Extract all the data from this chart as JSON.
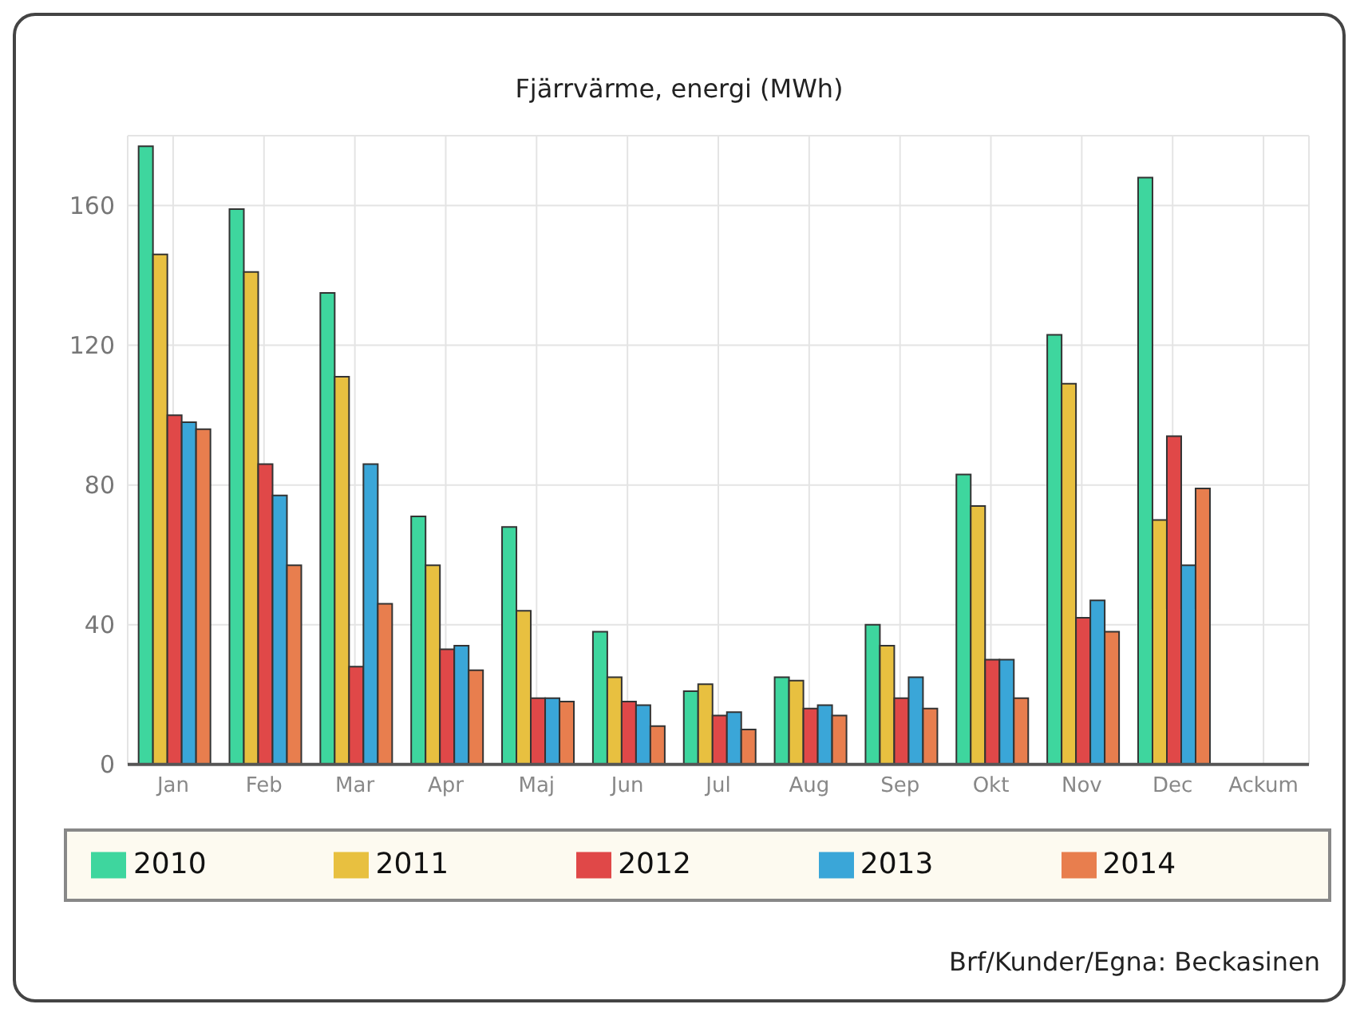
{
  "chart_data": {
    "type": "bar",
    "title": "Fjärrvärme, energi (MWh)",
    "categories": [
      "Jan",
      "Feb",
      "Mar",
      "Apr",
      "Maj",
      "Jun",
      "Jul",
      "Aug",
      "Sep",
      "Okt",
      "Nov",
      "Dec",
      "Ackum"
    ],
    "series": [
      {
        "name": "2010",
        "color": "#3ed69e",
        "values": [
          177,
          159,
          135,
          71,
          68,
          38,
          21,
          25,
          40,
          83,
          123,
          168,
          null
        ]
      },
      {
        "name": "2011",
        "color": "#e8c040",
        "values": [
          146,
          141,
          111,
          57,
          44,
          25,
          23,
          24,
          34,
          74,
          109,
          70,
          null
        ]
      },
      {
        "name": "2012",
        "color": "#e04848",
        "values": [
          100,
          86,
          28,
          33,
          19,
          18,
          14,
          16,
          19,
          30,
          42,
          94,
          null
        ]
      },
      {
        "name": "2013",
        "color": "#3aa6d8",
        "values": [
          98,
          77,
          86,
          34,
          19,
          17,
          15,
          17,
          25,
          30,
          47,
          57,
          null
        ]
      },
      {
        "name": "2014",
        "color": "#e87e4e",
        "values": [
          96,
          57,
          46,
          27,
          18,
          11,
          10,
          14,
          16,
          19,
          38,
          79,
          null
        ]
      }
    ],
    "ylim": [
      0,
      180
    ],
    "yticks": [
      0,
      40,
      80,
      120,
      160
    ],
    "grid": true,
    "legend": "bottom",
    "annotations": [
      "Brf/Kunder/Egna: Beckasinen"
    ]
  }
}
